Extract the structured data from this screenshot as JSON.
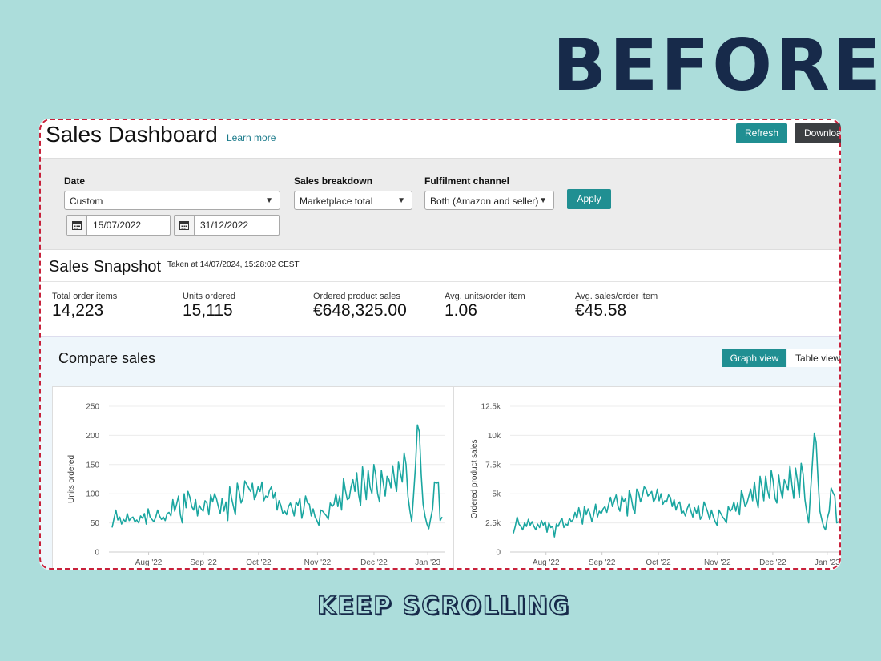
{
  "overlay": {
    "heading": "BEFORE",
    "footer": "KEEP SCROLLING"
  },
  "header": {
    "title": "Sales Dashboard",
    "learn_more": "Learn more",
    "refresh_label": "Refresh",
    "download_label": "Download"
  },
  "filters": {
    "date_label": "Date",
    "date_value": "Custom",
    "date_from": "15/07/2022",
    "date_to": "31/12/2022",
    "breakdown_label": "Sales breakdown",
    "breakdown_value": "Marketplace total",
    "fulfilment_label": "Fulfilment channel",
    "fulfilment_value": "Both (Amazon and seller)",
    "apply_label": "Apply"
  },
  "snapshot": {
    "title": "Sales Snapshot",
    "taken": "Taken at 14/07/2024, 15:28:02 CEST",
    "metrics": [
      {
        "label": "Total order items",
        "value": "14,223"
      },
      {
        "label": "Units ordered",
        "value": "15,115"
      },
      {
        "label": "Ordered product sales",
        "value": "€648,325.00"
      },
      {
        "label": "Avg. units/order item",
        "value": "1.06"
      },
      {
        "label": "Avg. sales/order item",
        "value": "€45.58"
      }
    ]
  },
  "compare": {
    "title": "Compare sales",
    "graph_view": "Graph view",
    "table_view": "Table view"
  },
  "colors": {
    "accent": "#208f92",
    "line": "#1aa6a0",
    "dark_button": "#3c3f42",
    "border_dash": "#c8203a",
    "background": "#acdddb"
  },
  "chart_data": [
    {
      "type": "line",
      "ylabel": "Units ordered",
      "xlabel": "",
      "ylim": [
        0,
        250
      ],
      "yticks": [
        "0",
        "50",
        "100",
        "150",
        "200",
        "250"
      ],
      "xticks": [
        "Aug '22",
        "Sep '22",
        "Oct '22",
        "Nov '22",
        "Dec '22",
        "Jan '23"
      ],
      "grid": true,
      "series": [
        {
          "values": [
            42,
            58,
            72,
            55,
            60,
            48,
            56,
            52,
            66,
            54,
            58,
            60,
            52,
            55,
            50,
            62,
            58,
            66,
            48,
            74,
            60,
            56,
            52,
            60,
            72,
            62,
            56,
            60,
            54,
            66,
            68,
            62,
            90,
            70,
            82,
            96,
            64,
            50,
            100,
            76,
            104,
            94,
            78,
            72,
            90,
            62,
            80,
            74,
            70,
            88,
            84,
            64,
            98,
            86,
            100,
            92,
            78,
            66,
            92,
            70,
            86,
            54,
            112,
            92,
            78,
            64,
            118,
            104,
            84,
            92,
            122,
            116,
            110,
            104,
            118,
            90,
            98,
            112,
            104,
            120,
            88,
            96,
            94,
            106,
            112,
            92,
            102,
            72,
            88,
            80,
            66,
            70,
            64,
            78,
            84,
            74,
            62,
            86,
            80,
            92,
            58,
            72,
            96,
            84,
            82,
            62,
            74,
            60,
            54,
            46,
            72,
            70,
            66,
            62,
            56,
            84,
            78,
            82,
            100,
            78,
            96,
            72,
            126,
            106,
            90,
            92,
            112,
            124,
            104,
            136,
            98,
            80,
            146,
            120,
            90,
            140,
            112,
            100,
            150,
            132,
            100,
            86,
            140,
            118,
            96,
            130,
            124,
            110,
            148,
            122,
            104,
            154,
            136,
            120,
            170,
            150,
            96,
            72,
            52,
            100,
            150,
            218,
            206,
            132,
            82,
            62,
            48,
            40,
            58,
            74,
            120,
            118,
            120,
            54,
            60
          ]
        }
      ]
    },
    {
      "type": "line",
      "ylabel": "Ordered product sales",
      "xlabel": "",
      "ylim": [
        0,
        12500
      ],
      "yticks": [
        "0",
        "2.5k",
        "5k",
        "7.5k",
        "10k",
        "12.5k"
      ],
      "xticks": [
        "Aug '22",
        "Sep '22",
        "Oct '22",
        "Nov '22",
        "Dec '22",
        "Jan '23"
      ],
      "grid": true,
      "series": [
        {
          "values": [
            1600,
            2200,
            3000,
            2400,
            2200,
            1900,
            2500,
            2200,
            2800,
            2300,
            2600,
            2200,
            1900,
            2400,
            2100,
            2700,
            2300,
            2600,
            1700,
            2500,
            2100,
            2200,
            1300,
            2400,
            2200,
            2600,
            2900,
            2100,
            2400,
            2300,
            2900,
            2600,
            2800,
            3400,
            2900,
            3800,
            3100,
            2400,
            3900,
            3200,
            3700,
            3300,
            2600,
            3200,
            4100,
            3000,
            3500,
            3300,
            3700,
            3900,
            3400,
            4100,
            4700,
            3900,
            4400,
            4900,
            3900,
            3500,
            4800,
            4300,
            4600,
            3100,
            5300,
            4700,
            3800,
            3300,
            5400,
            5100,
            4300,
            4800,
            5600,
            5400,
            4800,
            5000,
            5200,
            4300,
            4600,
            5400,
            4400,
            5000,
            4100,
            4400,
            4300,
            4900,
            4700,
            3900,
            4500,
            3600,
            4100,
            4300,
            3300,
            3500,
            3100,
            3700,
            4100,
            3500,
            3000,
            3800,
            3300,
            4000,
            2800,
            3100,
            4300,
            3900,
            3400,
            2800,
            3600,
            3000,
            2600,
            2300,
            3600,
            3300,
            3000,
            2800,
            2500,
            3900,
            3500,
            3700,
            4300,
            3500,
            4200,
            3200,
            5300,
            4700,
            3900,
            4200,
            4800,
            5400,
            4400,
            6000,
            4600,
            3800,
            6500,
            5600,
            4400,
            6500,
            5300,
            4600,
            7000,
            6100,
            4600,
            4200,
            6600,
            5300,
            4600,
            6200,
            5800,
            5300,
            7400,
            5800,
            4600,
            7200,
            6100,
            4700,
            7600,
            6700,
            4500,
            3400,
            2500,
            5200,
            7600,
            10200,
            9400,
            6300,
            3500,
            2800,
            2200,
            1900,
            2900,
            3500,
            5500,
            5100,
            4800,
            2500,
            2600
          ]
        }
      ]
    }
  ]
}
